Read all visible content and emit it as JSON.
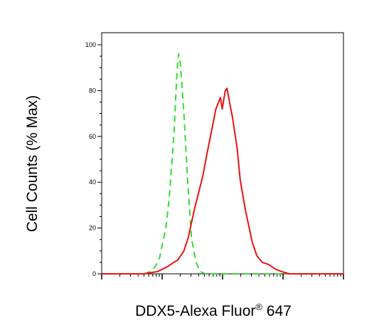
{
  "chart_data": {
    "type": "line",
    "title": "",
    "xlabel_main": "DDX5-Alexa Fluor",
    "xlabel_sup": "®",
    "xlabel_tail": " 647",
    "ylabel": "Cell Counts (% Max)",
    "x_scale": "log",
    "xlim": [
      0.001,
      10
    ],
    "ylim": [
      0,
      100
    ],
    "yticks": [
      0,
      20,
      40,
      60,
      80,
      100
    ],
    "series": [
      {
        "color": "#33dd33",
        "style": "dashed",
        "x": [
          0.001,
          0.00504,
          0.00641,
          0.00763,
          0.00908,
          0.0115,
          0.0131,
          0.0156,
          0.0176,
          0.0187,
          0.02,
          0.0229,
          0.0265,
          0.0308,
          0.0365,
          0.0426,
          0.0522,
          10
        ],
        "y": [
          0,
          0,
          1,
          3,
          7,
          20,
          33,
          60,
          88,
          96,
          92,
          70,
          40,
          15,
          5,
          1,
          0,
          0
        ]
      },
      {
        "color": "#ee1111",
        "style": "solid",
        "x": [
          0.001,
          0.00504,
          0.00836,
          0.0121,
          0.0156,
          0.0181,
          0.0229,
          0.0272,
          0.0341,
          0.0474,
          0.0548,
          0.0652,
          0.0775,
          0.0922,
          0.0985,
          0.1107,
          0.1183,
          0.1303,
          0.1464,
          0.1738,
          0.1956,
          0.238,
          0.3083,
          0.3669,
          0.453,
          0.584,
          0.7541,
          0.9451,
          1.273,
          1.716,
          3.146,
          10
        ],
        "y": [
          0,
          0,
          1,
          3,
          5,
          6,
          10,
          16,
          28,
          43,
          52,
          62,
          72,
          77,
          72,
          80,
          81,
          75,
          68,
          55,
          41,
          28,
          14,
          8,
          5,
          4,
          2,
          1,
          0,
          0,
          0,
          0
        ]
      }
    ]
  }
}
